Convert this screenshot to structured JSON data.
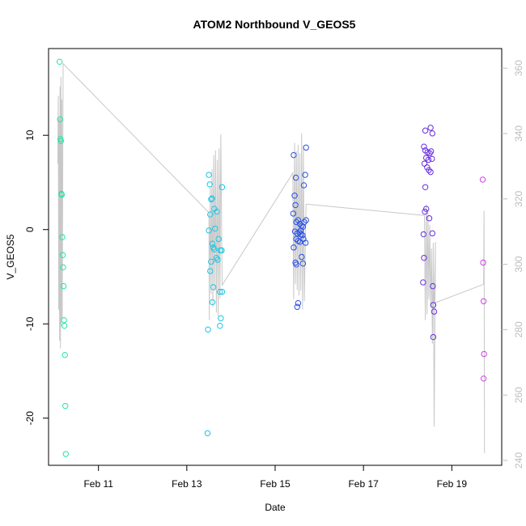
{
  "chart_data": {
    "type": "scatter",
    "title": "ATOM2 Northbound V_GEOS5",
    "xlabel": "Date",
    "ylabel": "V_GEOS5",
    "x_ticks": [
      "Feb 11",
      "Feb 13",
      "Feb 15",
      "Feb 17",
      "Feb 19"
    ],
    "x_tick_days": [
      11,
      13,
      15,
      17,
      19
    ],
    "y_ticks": [
      -20,
      -10,
      0,
      10
    ],
    "y2_ticks": [
      240,
      260,
      280,
      300,
      320,
      340,
      360
    ],
    "xlim_days": [
      9.87,
      20.13
    ],
    "ylim": [
      -25,
      19.2
    ],
    "y2lim": [
      238.5,
      366
    ],
    "colors": {
      "line": "#c8c8c8",
      "right_axis": "#bdbdbd"
    },
    "series": [
      {
        "color": "#1ee6a8",
        "points": [
          [
            10.12,
            17.8
          ],
          [
            10.13,
            11.7
          ],
          [
            10.14,
            9.6
          ],
          [
            10.15,
            9.4
          ],
          [
            10.16,
            3.8
          ],
          [
            10.17,
            3.7
          ],
          [
            10.18,
            -0.8
          ],
          [
            10.19,
            -2.7
          ],
          [
            10.2,
            -4.0
          ],
          [
            10.21,
            -6.0
          ],
          [
            10.22,
            -9.6
          ],
          [
            10.23,
            -10.2
          ],
          [
            10.24,
            -13.3
          ],
          [
            10.25,
            -18.7
          ],
          [
            10.26,
            -23.8
          ]
        ]
      },
      {
        "color": "#19c6e6",
        "points": [
          [
            13.5,
            5.8
          ],
          [
            13.52,
            4.8
          ],
          [
            13.53,
            1.6
          ],
          [
            13.55,
            3.2
          ],
          [
            13.57,
            3.3
          ],
          [
            13.5,
            -0.1
          ],
          [
            13.53,
            -4.4
          ],
          [
            13.58,
            -1.5
          ],
          [
            13.6,
            -1.9
          ],
          [
            13.62,
            -2.1
          ],
          [
            13.55,
            -3.4
          ],
          [
            13.67,
            -3.0
          ],
          [
            13.7,
            -3.2
          ],
          [
            13.62,
            2.2
          ],
          [
            13.68,
            1.9
          ],
          [
            13.72,
            -1.0
          ],
          [
            13.76,
            -2.2
          ],
          [
            13.8,
            4.5
          ],
          [
            13.6,
            -6.1
          ],
          [
            13.58,
            -7.7
          ],
          [
            13.75,
            -6.6
          ],
          [
            13.8,
            -6.6
          ],
          [
            13.77,
            -9.4
          ],
          [
            13.75,
            -10.2
          ],
          [
            13.48,
            -10.6
          ],
          [
            13.47,
            -21.6
          ],
          [
            13.64,
            0.1
          ],
          [
            13.79,
            -2.2
          ]
        ]
      },
      {
        "color": "#2850e8",
        "points": [
          [
            15.42,
            7.9
          ],
          [
            15.7,
            8.7
          ],
          [
            15.47,
            5.5
          ],
          [
            15.68,
            5.8
          ],
          [
            15.65,
            4.7
          ],
          [
            15.44,
            3.6
          ],
          [
            15.46,
            2.6
          ],
          [
            15.41,
            1.7
          ],
          [
            15.52,
            1.0
          ],
          [
            15.48,
            0.8
          ],
          [
            15.56,
            0.6
          ],
          [
            15.6,
            0.4
          ],
          [
            15.63,
            0.3
          ],
          [
            15.66,
            0.8
          ],
          [
            15.7,
            1.0
          ],
          [
            15.45,
            -0.2
          ],
          [
            15.5,
            -0.4
          ],
          [
            15.55,
            -0.3
          ],
          [
            15.58,
            -0.5
          ],
          [
            15.62,
            -0.6
          ],
          [
            15.48,
            -1.0
          ],
          [
            15.52,
            -1.2
          ],
          [
            15.56,
            -1.3
          ],
          [
            15.64,
            -1.0
          ],
          [
            15.69,
            -1.4
          ],
          [
            15.42,
            -1.9
          ],
          [
            15.6,
            -2.9
          ],
          [
            15.46,
            -3.5
          ],
          [
            15.48,
            -3.7
          ],
          [
            15.63,
            -3.6
          ],
          [
            15.52,
            -7.8
          ],
          [
            15.5,
            -8.2
          ],
          [
            15.58,
            -0.1
          ]
        ]
      },
      {
        "color": "#6a2ee0",
        "points": [
          [
            18.4,
            10.5
          ],
          [
            18.52,
            10.8
          ],
          [
            18.56,
            10.2
          ],
          [
            18.37,
            8.8
          ],
          [
            18.4,
            8.4
          ],
          [
            18.45,
            8.2
          ],
          [
            18.5,
            8.1
          ],
          [
            18.53,
            8.3
          ],
          [
            18.42,
            7.6
          ],
          [
            18.47,
            7.4
          ],
          [
            18.55,
            7.5
          ],
          [
            18.38,
            7.0
          ],
          [
            18.44,
            6.6
          ],
          [
            18.48,
            6.3
          ],
          [
            18.52,
            6.1
          ],
          [
            18.4,
            4.5
          ],
          [
            18.42,
            2.2
          ],
          [
            18.39,
            1.9
          ],
          [
            18.49,
            1.2
          ],
          [
            18.36,
            -0.5
          ],
          [
            18.56,
            -0.4
          ],
          [
            18.37,
            -3.0
          ],
          [
            18.35,
            -5.6
          ],
          [
            18.57,
            -6.0
          ],
          [
            18.58,
            -8.0
          ],
          [
            18.6,
            -8.7
          ],
          [
            18.58,
            -11.4
          ]
        ]
      },
      {
        "color": "#d23ee8",
        "points": [
          [
            19.7,
            5.3
          ],
          [
            19.71,
            -3.5
          ],
          [
            19.72,
            -7.6
          ],
          [
            19.73,
            -13.2
          ],
          [
            19.72,
            -15.8
          ]
        ]
      }
    ],
    "line_series": {
      "color": "#c8c8c8",
      "points": [
        [
          10.08,
          7.0
        ],
        [
          10.09,
          14.2
        ],
        [
          10.1,
          -8.5
        ],
        [
          10.11,
          11.8
        ],
        [
          10.12,
          -11.8
        ],
        [
          10.13,
          15.2
        ],
        [
          10.14,
          -12.6
        ],
        [
          10.15,
          16.2
        ],
        [
          10.16,
          -10.2
        ],
        [
          10.17,
          13.8
        ],
        [
          10.18,
          -9.5
        ],
        [
          10.2,
          17.6
        ],
        [
          13.5,
          1.8
        ],
        [
          13.51,
          -9.6
        ],
        [
          13.53,
          4.6
        ],
        [
          13.55,
          -6.8
        ],
        [
          13.57,
          6.4
        ],
        [
          13.59,
          -8.2
        ],
        [
          13.61,
          7.9
        ],
        [
          13.63,
          -6.5
        ],
        [
          13.65,
          8.4
        ],
        [
          13.67,
          -8.8
        ],
        [
          13.69,
          7.4
        ],
        [
          13.71,
          -9.2
        ],
        [
          13.73,
          8.6
        ],
        [
          13.75,
          -7.3
        ],
        [
          13.77,
          10.1
        ],
        [
          13.8,
          -5.9
        ],
        [
          15.4,
          6.0
        ],
        [
          15.42,
          -7.4
        ],
        [
          15.44,
          9.2
        ],
        [
          15.46,
          -5.8
        ],
        [
          15.48,
          8.3
        ],
        [
          15.5,
          -6.4
        ],
        [
          15.52,
          9.0
        ],
        [
          15.54,
          -7.0
        ],
        [
          15.56,
          8.1
        ],
        [
          15.58,
          -6.5
        ],
        [
          15.6,
          10.2
        ],
        [
          15.62,
          -8.5
        ],
        [
          15.64,
          8.9
        ],
        [
          15.66,
          -7.6
        ],
        [
          15.7,
          2.7
        ],
        [
          18.38,
          1.5
        ],
        [
          18.4,
          -9.6
        ],
        [
          18.42,
          2.6
        ],
        [
          18.44,
          -9.0
        ],
        [
          18.46,
          1.8
        ],
        [
          18.48,
          -7.4
        ],
        [
          18.5,
          0.5
        ],
        [
          18.52,
          -8.2
        ],
        [
          18.54,
          -2.0
        ],
        [
          18.56,
          -12.1
        ],
        [
          18.58,
          -1.4
        ],
        [
          18.6,
          -20.9
        ],
        [
          18.63,
          -1.3
        ],
        [
          18.6,
          -7.8
        ],
        [
          19.72,
          -5.8
        ],
        [
          19.73,
          2.0
        ],
        [
          19.74,
          -23.7
        ]
      ]
    }
  }
}
